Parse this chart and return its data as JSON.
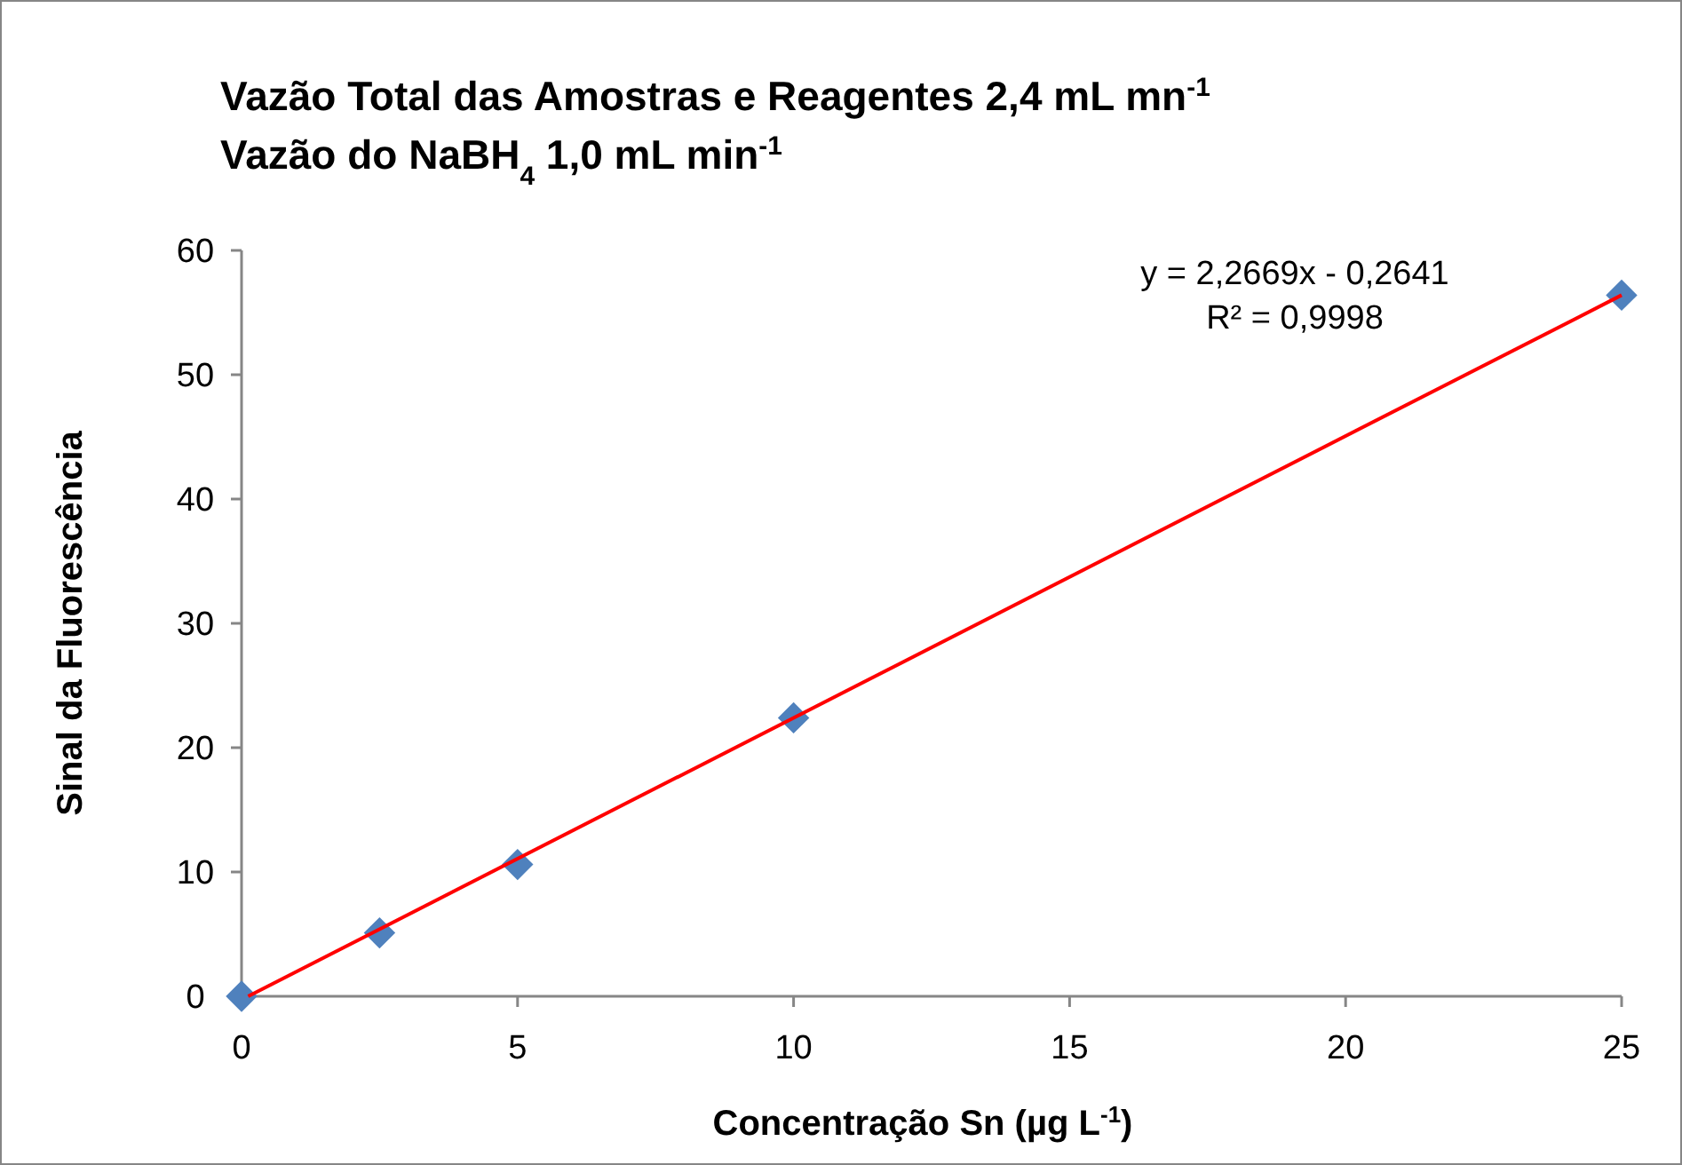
{
  "chart_data": {
    "type": "scatter",
    "title": "Vazão Total das Amostras e Reagentes 2,4 mL mn$^{-1}$\nVazão do NaBH$_{4}$ 1,0 mL min$^{-1}$",
    "xlabel": "Concentração Sn (µg L$^{-1}$)",
    "ylabel": "Sinal da Fluorescência",
    "x": [
      0,
      2.5,
      5,
      10,
      25
    ],
    "series": [
      {
        "color": "#4f81bd",
        "values": [
          0,
          5.1,
          10.6,
          22.4,
          56.4
        ],
        "marker": "diamond"
      },
      {
        "type": "line",
        "color": "#ff0000",
        "x": [
          0.12,
          25
        ],
        "values": [
          0,
          56.4
        ],
        "marker": "none"
      }
    ],
    "xlim": [
      0,
      25
    ],
    "xticks": [
      0,
      5,
      10,
      15,
      20,
      25
    ],
    "ylim": [
      0,
      60
    ],
    "yticks": [
      0,
      10,
      20,
      30,
      40,
      50,
      60
    ],
    "grid": false,
    "annotations": [
      "y = 2,2669x - 0,2641",
      "R² = 0,9998"
    ]
  }
}
